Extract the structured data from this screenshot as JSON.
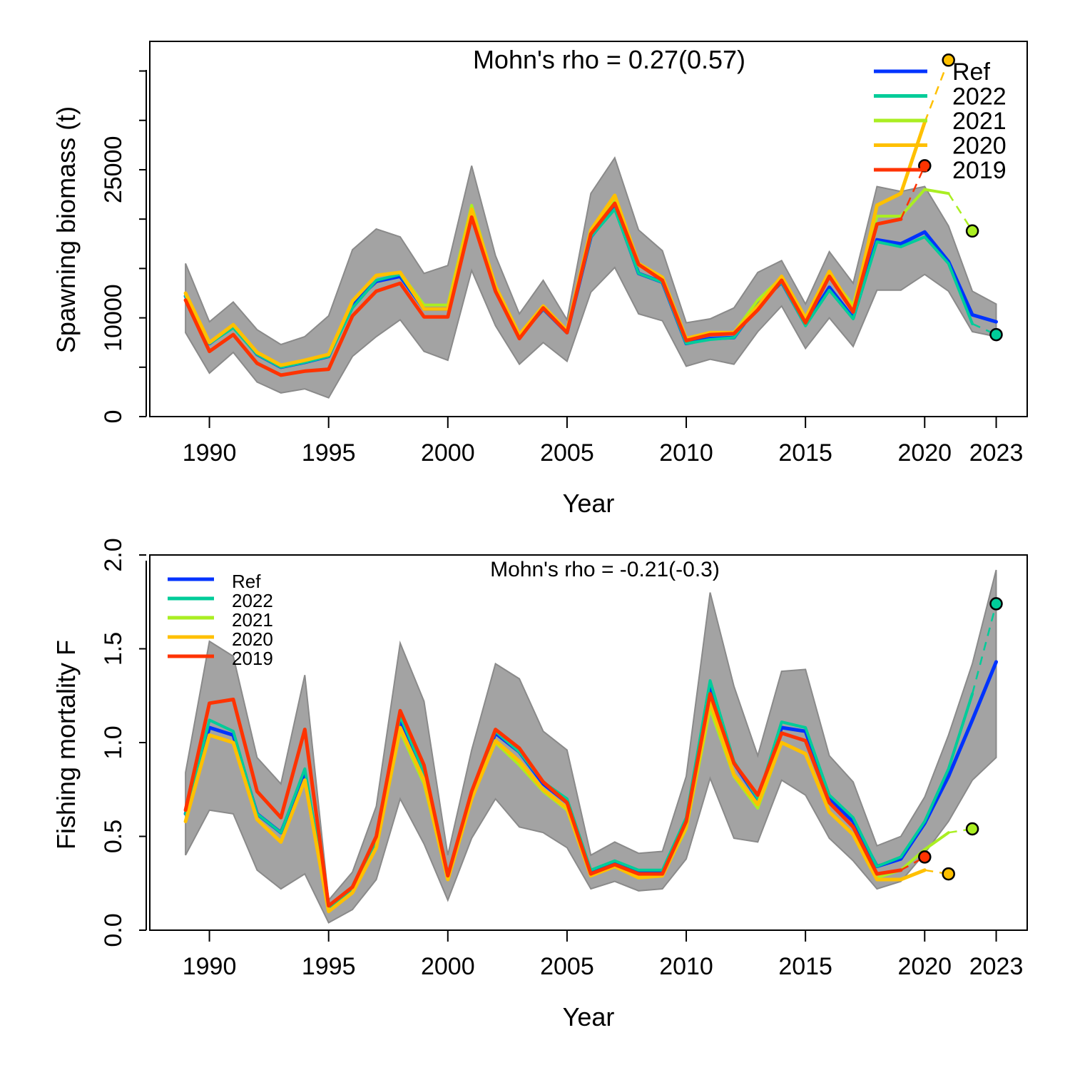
{
  "colors": {
    "Ref": "#0033ff",
    "2022": "#00cc99",
    "2021": "#aaee22",
    "2020": "#ffc000",
    "2019": "#ff3300",
    "band": "#a3a3a3"
  },
  "chart_data": [
    {
      "type": "line",
      "name": "ssb",
      "title": "Mohn's rho = 0.27(0.57)",
      "xlabel": "Year",
      "ylabel": "Spawning biomass (t)",
      "xlim": [
        1987.5,
        2024.3
      ],
      "ylim": [
        0,
        38000
      ],
      "x_ticks": [
        1990,
        1995,
        2000,
        2005,
        2010,
        2015,
        2020,
        2023
      ],
      "y_ticks": [
        0,
        5000,
        10000,
        15000,
        20000,
        25000,
        30000,
        35000
      ],
      "y_tick_labels": [
        "0",
        "",
        "10000",
        "",
        "",
        "25000",
        "",
        ""
      ],
      "legend": {
        "position": "top-right",
        "entries": [
          "Ref",
          "2022",
          "2021",
          "2020",
          "2019"
        ]
      },
      "band": {
        "x": [
          1989,
          1990,
          1991,
          1992,
          1993,
          1994,
          1995,
          1996,
          1997,
          1998,
          1999,
          2000,
          2001,
          2002,
          2003,
          2004,
          2005,
          2006,
          2007,
          2008,
          2009,
          2010,
          2011,
          2012,
          2013,
          2014,
          2015,
          2016,
          2017,
          2018,
          2019,
          2020,
          2021,
          2022,
          2023
        ],
        "upper": [
          15500,
          9600,
          11600,
          8800,
          7300,
          8100,
          10200,
          16900,
          19000,
          18200,
          14500,
          15300,
          25400,
          16300,
          10400,
          13800,
          9800,
          22600,
          26200,
          18900,
          16800,
          9500,
          9900,
          11000,
          14600,
          15800,
          11400,
          16700,
          13500,
          23300,
          22800,
          23300,
          19300,
          12700,
          11400
        ],
        "lower": [
          8500,
          4400,
          6500,
          3500,
          2400,
          2800,
          1900,
          6100,
          8100,
          9800,
          6600,
          5700,
          14800,
          9200,
          5300,
          7500,
          5600,
          12600,
          15100,
          10400,
          9700,
          5100,
          5800,
          5300,
          8600,
          11200,
          6900,
          10000,
          7100,
          12800,
          12800,
          14400,
          12700,
          8600,
          8100
        ]
      },
      "series": [
        {
          "name": "Ref",
          "x": [
            1989,
            1990,
            1991,
            1992,
            1993,
            1994,
            1995,
            1996,
            1997,
            1998,
            1999,
            2000,
            2001,
            2002,
            2003,
            2004,
            2005,
            2006,
            2007,
            2008,
            2009,
            2010,
            2011,
            2012,
            2013,
            2014,
            2015,
            2016,
            2017,
            2018,
            2019,
            2020,
            2021,
            2022,
            2023
          ],
          "y": [
            12200,
            7400,
            9200,
            6300,
            5000,
            5500,
            6100,
            11400,
            13700,
            14200,
            10900,
            10900,
            20600,
            12700,
            8100,
            10900,
            8500,
            18200,
            21200,
            14500,
            13600,
            7400,
            7900,
            8000,
            11300,
            13600,
            9300,
            13100,
            10000,
            17900,
            17500,
            18700,
            15700,
            10300,
            9600
          ]
        },
        {
          "name": "2022",
          "x": [
            1989,
            1990,
            1991,
            1992,
            1993,
            1994,
            1995,
            1996,
            1997,
            1998,
            1999,
            2000,
            2001,
            2002,
            2003,
            2004,
            2005,
            2006,
            2007,
            2008,
            2009,
            2010,
            2011,
            2012,
            2013,
            2014,
            2015,
            2016,
            2017,
            2018,
            2019,
            2020,
            2021,
            2022
          ],
          "y": [
            12200,
            7400,
            9000,
            6300,
            5000,
            5500,
            6100,
            11000,
            13800,
            14400,
            10900,
            10900,
            20600,
            12700,
            8100,
            10900,
            8500,
            18200,
            21000,
            14500,
            13600,
            7400,
            7800,
            8000,
            11300,
            13600,
            9200,
            12800,
            9900,
            17700,
            17200,
            18200,
            15500,
            9400
          ],
          "end_point": 8300
        },
        {
          "name": "2021",
          "x": [
            1989,
            1990,
            1991,
            1992,
            1993,
            1994,
            1995,
            1996,
            1997,
            1998,
            1999,
            2000,
            2001,
            2002,
            2003,
            2004,
            2005,
            2006,
            2007,
            2008,
            2009,
            2010,
            2011,
            2012,
            2013,
            2014,
            2015,
            2016,
            2017,
            2018,
            2019,
            2020,
            2021
          ],
          "y": [
            12400,
            7500,
            9300,
            6500,
            5200,
            5700,
            6300,
            11700,
            14300,
            14600,
            11300,
            11300,
            21400,
            13200,
            8200,
            11000,
            8600,
            18600,
            22000,
            15300,
            14000,
            7800,
            8400,
            8500,
            11800,
            14100,
            9700,
            14300,
            11300,
            20300,
            20300,
            23000,
            22600
          ],
          "end_point": 18800
        },
        {
          "name": "2020",
          "x": [
            1989,
            1990,
            1991,
            1992,
            1993,
            1994,
            1995,
            1996,
            1997,
            1998,
            1999,
            2000,
            2001,
            2002,
            2003,
            2004,
            2005,
            2006,
            2007,
            2008,
            2009,
            2010,
            2011,
            2012,
            2013,
            2014,
            2015,
            2016,
            2017,
            2018,
            2019,
            2020
          ],
          "y": [
            12500,
            7500,
            9300,
            6500,
            5200,
            5700,
            6300,
            11700,
            14300,
            14600,
            10900,
            10900,
            21000,
            13200,
            8300,
            11200,
            8700,
            18900,
            22400,
            15500,
            14100,
            7900,
            8500,
            8500,
            11200,
            14200,
            10000,
            14700,
            10800,
            21400,
            22600,
            29800
          ],
          "end_point": 36100
        },
        {
          "name": "2019",
          "x": [
            1989,
            1990,
            1991,
            1992,
            1993,
            1994,
            1995,
            1996,
            1997,
            1998,
            1999,
            2000,
            2001,
            2002,
            2003,
            2004,
            2005,
            2006,
            2007,
            2008,
            2009,
            2010,
            2011,
            2012,
            2013,
            2014,
            2015,
            2016,
            2017,
            2018,
            2019
          ],
          "y": [
            11800,
            6600,
            8300,
            5400,
            4200,
            4600,
            4800,
            10200,
            12700,
            13500,
            10100,
            10100,
            20200,
            12700,
            7900,
            11000,
            8500,
            18500,
            21600,
            15400,
            13800,
            7700,
            8300,
            8400,
            10800,
            13800,
            9500,
            14200,
            10600,
            19500,
            20000
          ],
          "end_point": 25400
        }
      ]
    },
    {
      "type": "line",
      "name": "f",
      "title": "Mohn's rho = -0.21(-0.3)",
      "xlabel": "Year",
      "ylabel": "Fishing mortality F",
      "xlim": [
        1987.5,
        2024.3
      ],
      "ylim": [
        0,
        2.0
      ],
      "x_ticks": [
        1990,
        1995,
        2000,
        2005,
        2010,
        2015,
        2020,
        2023
      ],
      "y_ticks": [
        0.0,
        0.5,
        1.0,
        1.5,
        2.0
      ],
      "y_tick_labels": [
        "0.0",
        "0.5",
        "1.0",
        "1.5",
        "2.0"
      ],
      "legend": {
        "position": "top-left",
        "entries": [
          "Ref",
          "2022",
          "2021",
          "2020",
          "2019"
        ]
      },
      "band": {
        "x": [
          1989,
          1990,
          1991,
          1992,
          1993,
          1994,
          1995,
          1996,
          1997,
          1998,
          1999,
          2000,
          2001,
          2002,
          2003,
          2004,
          2005,
          2006,
          2007,
          2008,
          2009,
          2010,
          2011,
          2012,
          2013,
          2014,
          2015,
          2016,
          2017,
          2018,
          2019,
          2020,
          2021,
          2022,
          2023
        ],
        "upper": [
          0.84,
          1.54,
          1.46,
          0.92,
          0.78,
          1.36,
          0.16,
          0.31,
          0.66,
          1.53,
          1.22,
          0.4,
          0.96,
          1.42,
          1.34,
          1.06,
          0.96,
          0.4,
          0.47,
          0.41,
          0.42,
          0.82,
          1.8,
          1.3,
          0.93,
          1.38,
          1.39,
          0.93,
          0.79,
          0.45,
          0.5,
          0.71,
          1.04,
          1.42,
          1.92
        ],
        "lower": [
          0.4,
          0.64,
          0.62,
          0.32,
          0.22,
          0.3,
          0.04,
          0.11,
          0.27,
          0.7,
          0.46,
          0.16,
          0.49,
          0.7,
          0.55,
          0.52,
          0.44,
          0.22,
          0.26,
          0.21,
          0.22,
          0.38,
          0.81,
          0.49,
          0.47,
          0.8,
          0.72,
          0.49,
          0.37,
          0.22,
          0.26,
          0.41,
          0.58,
          0.8,
          0.92
        ]
      },
      "series": [
        {
          "name": "Ref",
          "x": [
            1989,
            1990,
            1991,
            1992,
            1993,
            1994,
            1995,
            1996,
            1997,
            1998,
            1999,
            2000,
            2001,
            2002,
            2003,
            2004,
            2005,
            2006,
            2007,
            2008,
            2009,
            2010,
            2011,
            2012,
            2013,
            2014,
            2015,
            2016,
            2017,
            2018,
            2019,
            2020,
            2021,
            2022,
            2023
          ],
          "y": [
            0.62,
            1.08,
            1.04,
            0.62,
            0.52,
            0.84,
            0.11,
            0.22,
            0.48,
            1.12,
            0.84,
            0.29,
            0.73,
            1.05,
            0.95,
            0.78,
            0.68,
            0.31,
            0.36,
            0.31,
            0.31,
            0.58,
            1.3,
            0.89,
            0.7,
            1.08,
            1.06,
            0.7,
            0.58,
            0.34,
            0.38,
            0.57,
            0.82,
            1.12,
            1.43
          ]
        },
        {
          "name": "2022",
          "x": [
            1989,
            1990,
            1991,
            1992,
            1993,
            1994,
            1995,
            1996,
            1997,
            1998,
            1999,
            2000,
            2001,
            2002,
            2003,
            2004,
            2005,
            2006,
            2007,
            2008,
            2009,
            2010,
            2011,
            2012,
            2013,
            2014,
            2015,
            2016,
            2017,
            2018,
            2019,
            2020,
            2021,
            2022
          ],
          "y": [
            0.62,
            1.12,
            1.06,
            0.62,
            0.52,
            0.86,
            0.11,
            0.22,
            0.48,
            1.14,
            0.84,
            0.29,
            0.74,
            1.06,
            0.95,
            0.79,
            0.7,
            0.32,
            0.37,
            0.32,
            0.32,
            0.6,
            1.33,
            0.9,
            0.7,
            1.11,
            1.08,
            0.72,
            0.6,
            0.34,
            0.39,
            0.58,
            0.86,
            1.26
          ],
          "end_point": 1.74
        },
        {
          "name": "2021",
          "x": [
            1989,
            1990,
            1991,
            1992,
            1993,
            1994,
            1995,
            1996,
            1997,
            1998,
            1999,
            2000,
            2001,
            2002,
            2003,
            2004,
            2005,
            2006,
            2007,
            2008,
            2009,
            2010,
            2011,
            2012,
            2013,
            2014,
            2015,
            2016,
            2017,
            2018,
            2019,
            2020,
            2021
          ],
          "y": [
            0.58,
            1.04,
            1.0,
            0.59,
            0.47,
            0.8,
            0.1,
            0.2,
            0.44,
            1.06,
            0.78,
            0.27,
            0.7,
            1.0,
            0.88,
            0.74,
            0.64,
            0.29,
            0.34,
            0.28,
            0.29,
            0.54,
            1.18,
            0.82,
            0.65,
            1.0,
            0.94,
            0.63,
            0.51,
            0.28,
            0.32,
            0.43,
            0.52
          ],
          "end_point": 0.54
        },
        {
          "name": "2020",
          "x": [
            1989,
            1990,
            1991,
            1992,
            1993,
            1994,
            1995,
            1996,
            1997,
            1998,
            1999,
            2000,
            2001,
            2002,
            2003,
            2004,
            2005,
            2006,
            2007,
            2008,
            2009,
            2010,
            2011,
            2012,
            2013,
            2014,
            2015,
            2016,
            2017,
            2018,
            2019,
            2020
          ],
          "y": [
            0.58,
            1.04,
            1.0,
            0.59,
            0.47,
            0.8,
            0.1,
            0.2,
            0.44,
            1.08,
            0.8,
            0.27,
            0.7,
            1.01,
            0.9,
            0.75,
            0.65,
            0.29,
            0.34,
            0.28,
            0.29,
            0.55,
            1.22,
            0.83,
            0.67,
            1.0,
            0.94,
            0.63,
            0.51,
            0.27,
            0.27,
            0.32
          ],
          "end_point": 0.3
        },
        {
          "name": "2019",
          "x": [
            1989,
            1990,
            1991,
            1992,
            1993,
            1994,
            1995,
            1996,
            1997,
            1998,
            1999,
            2000,
            2001,
            2002,
            2003,
            2004,
            2005,
            2006,
            2007,
            2008,
            2009,
            2010,
            2011,
            2012,
            2013,
            2014,
            2015,
            2016,
            2017,
            2018,
            2019
          ],
          "y": [
            0.64,
            1.21,
            1.23,
            0.74,
            0.6,
            1.07,
            0.13,
            0.23,
            0.5,
            1.17,
            0.88,
            0.29,
            0.74,
            1.07,
            0.97,
            0.79,
            0.68,
            0.3,
            0.35,
            0.3,
            0.3,
            0.58,
            1.26,
            0.89,
            0.72,
            1.05,
            1.01,
            0.68,
            0.55,
            0.3,
            0.32
          ],
          "end_point": 0.39
        }
      ]
    }
  ]
}
